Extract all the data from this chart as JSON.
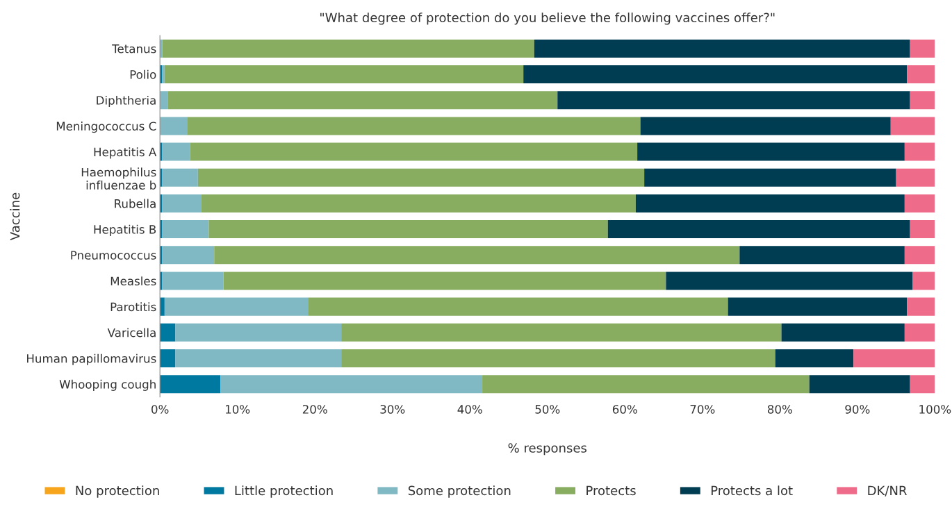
{
  "chart_data": {
    "type": "bar",
    "orientation": "horizontal",
    "stacked": true,
    "title": "\"What degree of protection do you believe the following vaccines offer?\"",
    "xlabel": "% responses",
    "ylabel": "Vaccine",
    "categories": [
      "Tetanus",
      "Polio",
      "Diphtheria",
      "Meningococcus C",
      "Hepatitis A",
      "Haemophilus\ninfluenzae b",
      "Rubella",
      "Hepatitis B",
      "Pneumococcus",
      "Measles",
      "Parotitis",
      "Varicella",
      "Human papillomavirus",
      "Whooping cough"
    ],
    "series": [
      {
        "name": "No protection",
        "color": "#f7a51c",
        "values": [
          0,
          0,
          0,
          0,
          0,
          0,
          0,
          0,
          0,
          0,
          0,
          0,
          0,
          0
        ]
      },
      {
        "name": "Little protection",
        "color": "#0079a0",
        "values": [
          0,
          0.3,
          0,
          0,
          0.3,
          0.3,
          0.3,
          0.3,
          0.3,
          0.3,
          0.6,
          2.0,
          2.0,
          7.8
        ]
      },
      {
        "name": "Some protection",
        "color": "#80b9c3",
        "values": [
          0.3,
          0.3,
          1.0,
          3.5,
          3.6,
          4.6,
          5.0,
          6.0,
          6.7,
          7.9,
          18.5,
          21.4,
          21.4,
          33.8
        ]
      },
      {
        "name": "Protects",
        "color": "#88ad61",
        "values": [
          48.0,
          46.3,
          50.3,
          58.5,
          57.7,
          57.6,
          56.1,
          51.5,
          67.8,
          57.1,
          54.2,
          56.8,
          56.0,
          42.2
        ]
      },
      {
        "name": "Protects a lot",
        "color": "#003c52",
        "values": [
          48.5,
          49.5,
          45.5,
          32.3,
          34.5,
          32.5,
          34.7,
          39.0,
          21.3,
          31.8,
          23.1,
          15.9,
          10.1,
          13.0
        ]
      },
      {
        "name": "DK/NR",
        "color": "#ef6b8a",
        "values": [
          3.2,
          3.6,
          3.2,
          5.7,
          3.9,
          5.0,
          3.9,
          3.2,
          3.9,
          2.9,
          3.6,
          3.9,
          10.5,
          3.2
        ]
      }
    ],
    "xlim": [
      0,
      100
    ],
    "xticks": [
      {
        "value": 0,
        "label": "0%"
      },
      {
        "value": 10,
        "label": "10%"
      },
      {
        "value": 20,
        "label": "20%"
      },
      {
        "value": 30,
        "label": "30%"
      },
      {
        "value": 40,
        "label": "40%"
      },
      {
        "value": 50,
        "label": "50%"
      },
      {
        "value": 60,
        "label": "60%"
      },
      {
        "value": 70,
        "label": "70%"
      },
      {
        "value": 80,
        "label": "80%"
      },
      {
        "value": 90,
        "label": "90%"
      },
      {
        "value": 100,
        "label": "100%"
      }
    ],
    "grid": false,
    "legend": "bottom"
  }
}
